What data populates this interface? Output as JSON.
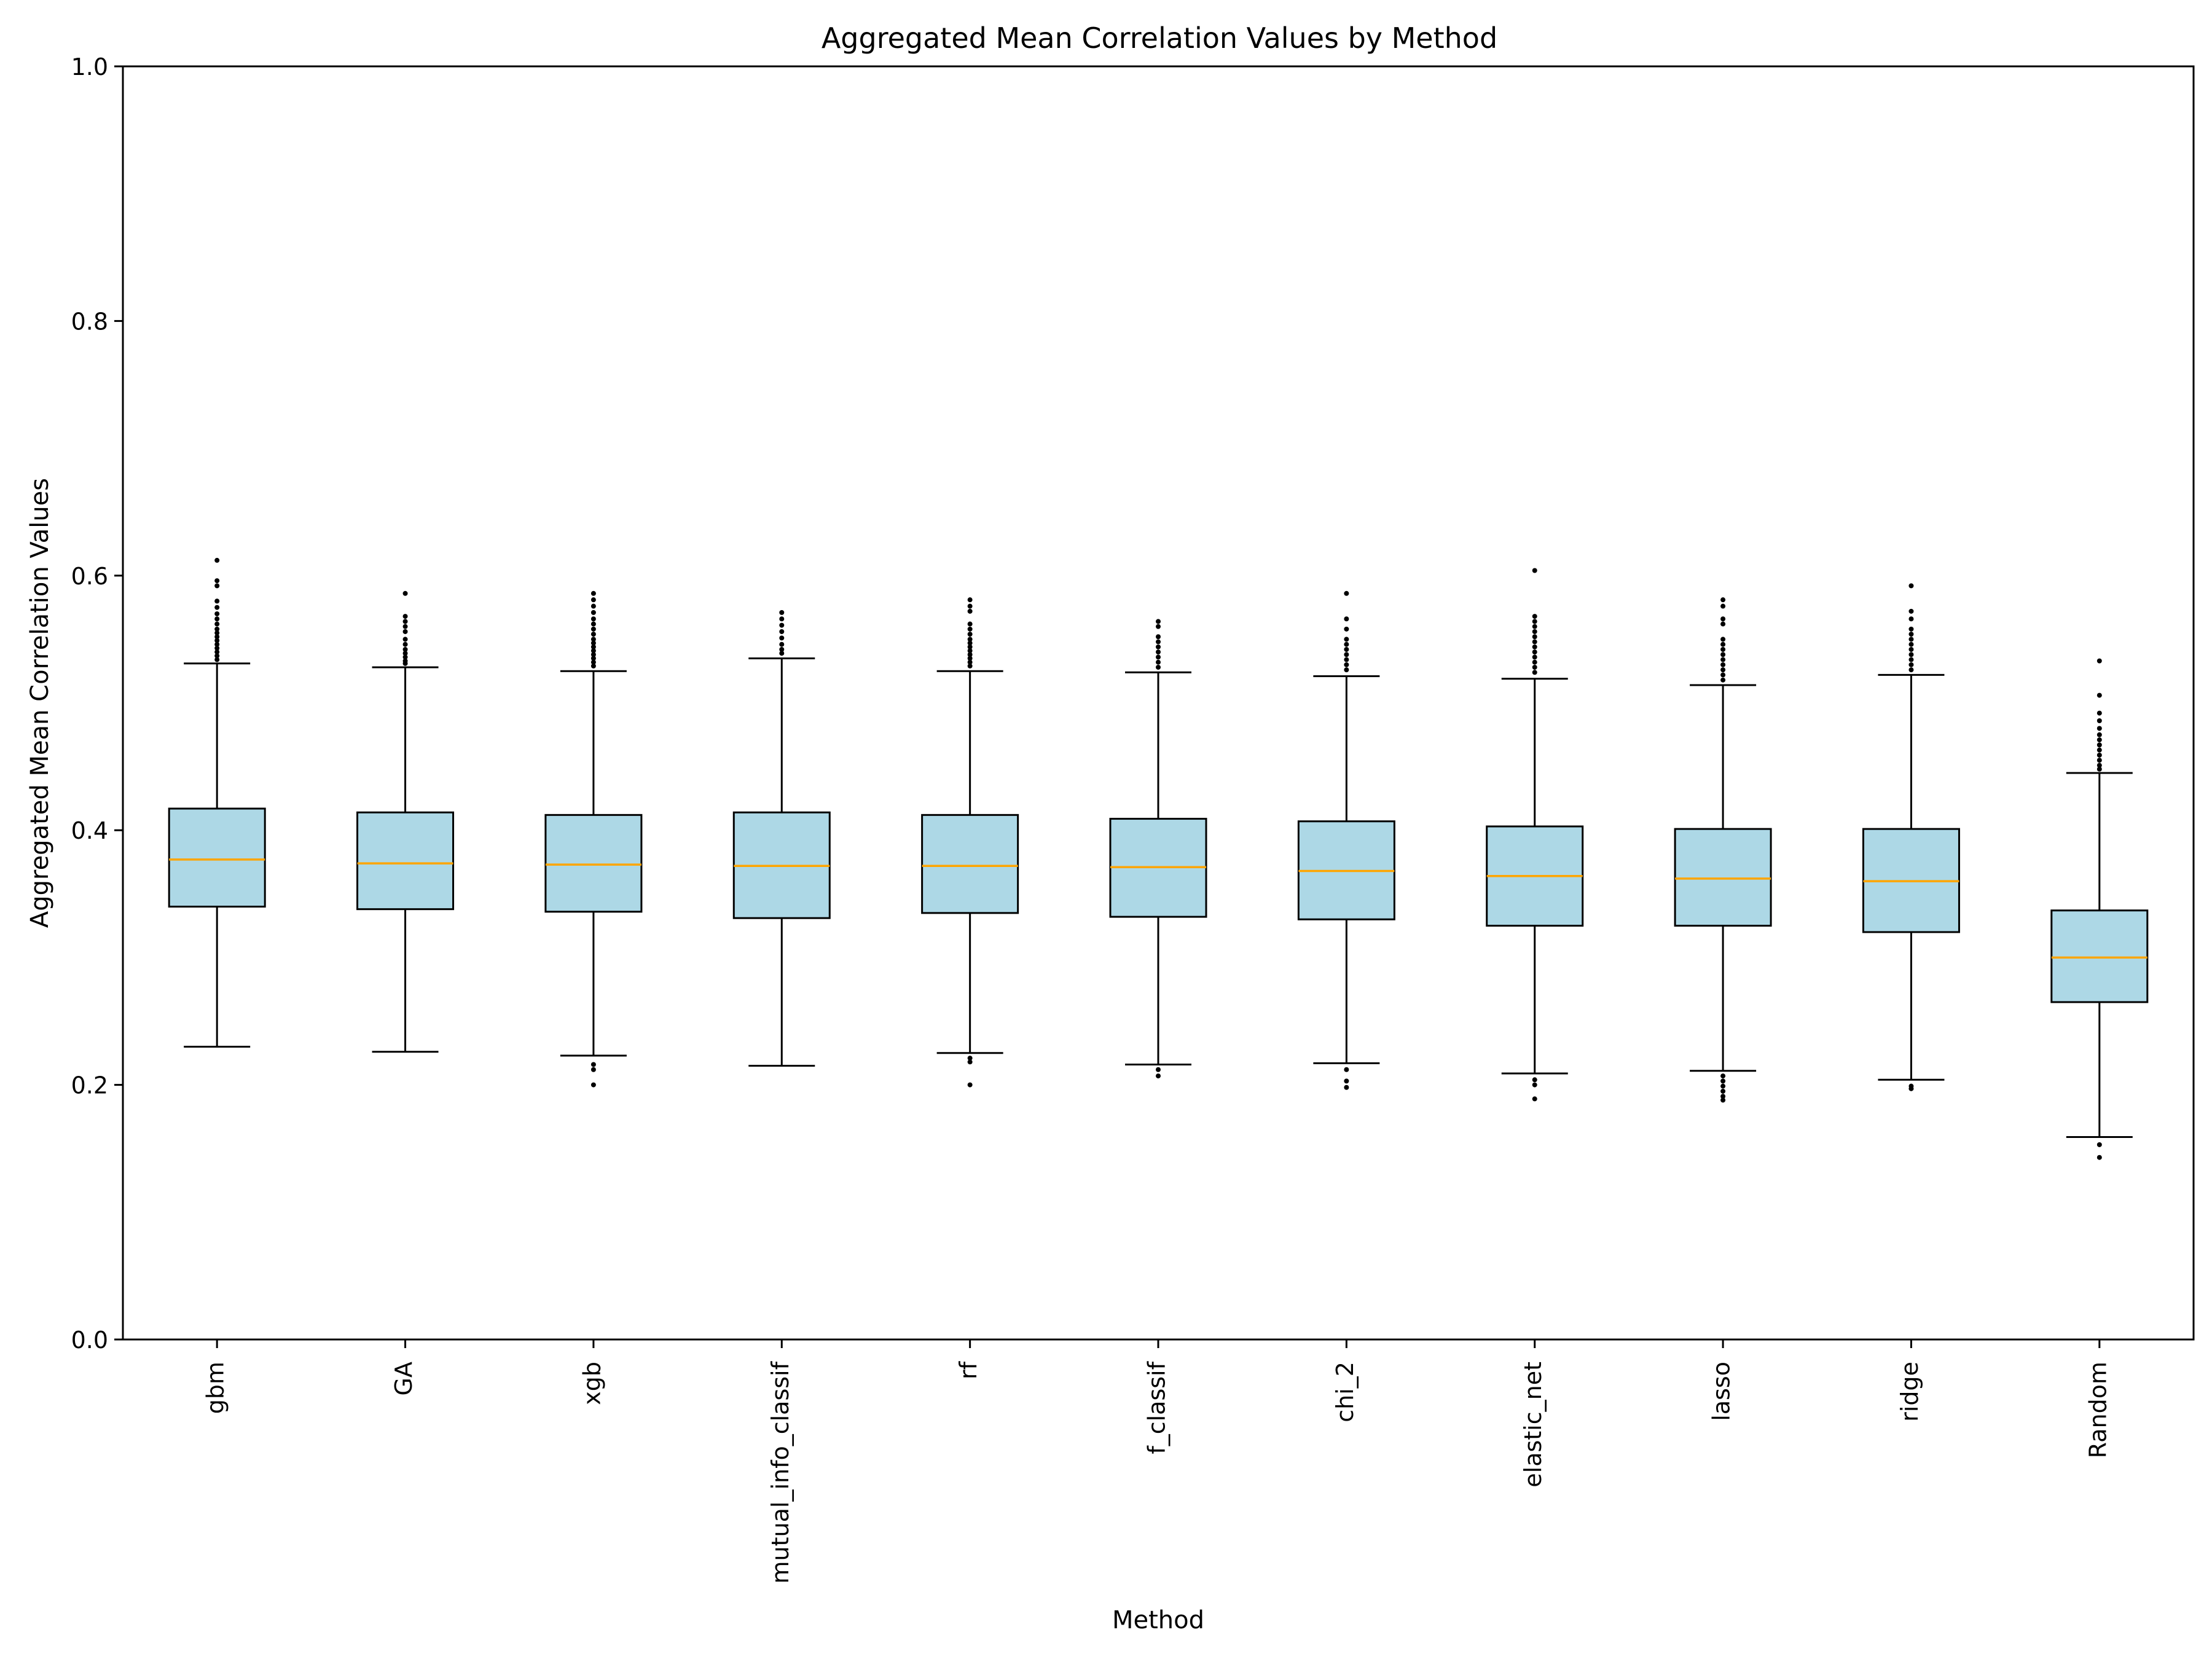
{
  "chart_data": {
    "type": "box",
    "title": "Aggregated Mean Correlation Values by Method",
    "xlabel": "Method",
    "ylabel": "Aggregated Mean Correlation Values",
    "ylim": [
      0.0,
      1.0
    ],
    "yticks": [
      "0.0",
      "0.2",
      "0.4",
      "0.6",
      "0.8",
      "1.0"
    ],
    "grid": false,
    "colors": {
      "box_fill": "#add8e6",
      "median": "#ffa500",
      "edge": "#000000"
    },
    "categories": [
      "gbm",
      "GA",
      "xgb",
      "mutual_info_classif",
      "rf",
      "f_classif",
      "chi_2",
      "elastic_net",
      "lasso",
      "ridge",
      "Random"
    ],
    "boxes": [
      {
        "label": "gbm",
        "whisker_low": 0.23,
        "q1": 0.34,
        "median": 0.377,
        "q3": 0.417,
        "whisker_high": 0.531,
        "outliers": [
          0.612,
          0.596,
          0.592,
          0.58,
          0.575,
          0.57,
          0.566,
          0.562,
          0.558,
          0.555,
          0.552,
          0.549,
          0.546,
          0.543,
          0.54,
          0.537,
          0.534
        ]
      },
      {
        "label": "GA",
        "whisker_low": 0.226,
        "q1": 0.338,
        "median": 0.374,
        "q3": 0.414,
        "whisker_high": 0.528,
        "outliers": [
          0.586,
          0.568,
          0.564,
          0.56,
          0.556,
          0.55,
          0.546,
          0.542,
          0.539,
          0.536,
          0.533,
          0.531
        ]
      },
      {
        "label": "xgb",
        "whisker_low": 0.223,
        "q1": 0.336,
        "median": 0.373,
        "q3": 0.412,
        "whisker_high": 0.525,
        "outliers": [
          0.586,
          0.581,
          0.576,
          0.571,
          0.566,
          0.562,
          0.558,
          0.554,
          0.55,
          0.547,
          0.544,
          0.541,
          0.538,
          0.535,
          0.532,
          0.529,
          0.216,
          0.212,
          0.2
        ]
      },
      {
        "label": "mutual_info_classif",
        "whisker_low": 0.215,
        "q1": 0.331,
        "median": 0.372,
        "q3": 0.414,
        "whisker_high": 0.535,
        "outliers": [
          0.571,
          0.566,
          0.561,
          0.556,
          0.551,
          0.546,
          0.542,
          0.539
        ]
      },
      {
        "label": "rf",
        "whisker_low": 0.225,
        "q1": 0.335,
        "median": 0.372,
        "q3": 0.412,
        "whisker_high": 0.525,
        "outliers": [
          0.581,
          0.576,
          0.572,
          0.562,
          0.558,
          0.554,
          0.55,
          0.547,
          0.544,
          0.541,
          0.538,
          0.535,
          0.532,
          0.529,
          0.221,
          0.218,
          0.2
        ]
      },
      {
        "label": "f_classif",
        "whisker_low": 0.216,
        "q1": 0.332,
        "median": 0.371,
        "q3": 0.409,
        "whisker_high": 0.524,
        "outliers": [
          0.564,
          0.56,
          0.552,
          0.548,
          0.544,
          0.54,
          0.536,
          0.532,
          0.528,
          0.212,
          0.207
        ]
      },
      {
        "label": "chi_2",
        "whisker_low": 0.217,
        "q1": 0.33,
        "median": 0.368,
        "q3": 0.407,
        "whisker_high": 0.521,
        "outliers": [
          0.586,
          0.566,
          0.558,
          0.55,
          0.546,
          0.542,
          0.538,
          0.534,
          0.53,
          0.526,
          0.212,
          0.203,
          0.198
        ]
      },
      {
        "label": "elastic_net",
        "whisker_low": 0.209,
        "q1": 0.325,
        "median": 0.364,
        "q3": 0.403,
        "whisker_high": 0.519,
        "outliers": [
          0.604,
          0.568,
          0.564,
          0.56,
          0.556,
          0.552,
          0.548,
          0.544,
          0.54,
          0.536,
          0.532,
          0.528,
          0.524,
          0.204,
          0.2,
          0.189
        ]
      },
      {
        "label": "lasso",
        "whisker_low": 0.211,
        "q1": 0.325,
        "median": 0.362,
        "q3": 0.401,
        "whisker_high": 0.514,
        "outliers": [
          0.581,
          0.576,
          0.566,
          0.562,
          0.55,
          0.546,
          0.542,
          0.538,
          0.534,
          0.53,
          0.526,
          0.522,
          0.518,
          0.207,
          0.203,
          0.199,
          0.195,
          0.191,
          0.188
        ]
      },
      {
        "label": "ridge",
        "whisker_low": 0.204,
        "q1": 0.32,
        "median": 0.36,
        "q3": 0.401,
        "whisker_high": 0.522,
        "outliers": [
          0.592,
          0.572,
          0.566,
          0.558,
          0.554,
          0.55,
          0.546,
          0.542,
          0.538,
          0.534,
          0.53,
          0.526,
          0.199,
          0.197
        ]
      },
      {
        "label": "Random",
        "whisker_low": 0.159,
        "q1": 0.265,
        "median": 0.3,
        "q3": 0.337,
        "whisker_high": 0.445,
        "outliers": [
          0.533,
          0.506,
          0.492,
          0.486,
          0.48,
          0.475,
          0.471,
          0.467,
          0.463,
          0.459,
          0.455,
          0.451,
          0.448,
          0.153,
          0.143
        ]
      }
    ]
  }
}
